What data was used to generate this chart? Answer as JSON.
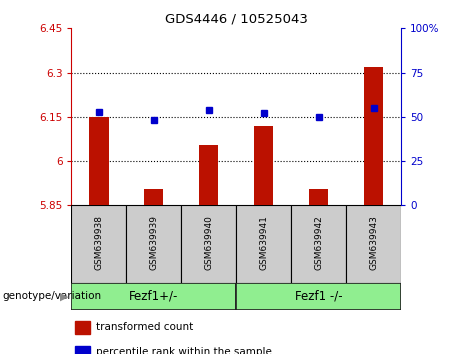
{
  "title": "GDS4446 / 10525043",
  "samples": [
    "GSM639938",
    "GSM639939",
    "GSM639940",
    "GSM639941",
    "GSM639942",
    "GSM639943"
  ],
  "bar_values": [
    6.148,
    5.905,
    6.055,
    6.118,
    5.905,
    6.32
  ],
  "percentile_values": [
    53,
    48,
    54,
    52,
    50,
    55
  ],
  "bar_bottom": 5.85,
  "ylim_left": [
    5.85,
    6.45
  ],
  "ylim_right": [
    0,
    100
  ],
  "yticks_left": [
    5.85,
    6.0,
    6.15,
    6.3,
    6.45
  ],
  "ytick_labels_left": [
    "5.85",
    "6",
    "6.15",
    "6.3",
    "6.45"
  ],
  "yticks_right": [
    0,
    25,
    50,
    75,
    100
  ],
  "ytick_labels_right": [
    "0",
    "25",
    "50",
    "75",
    "100%"
  ],
  "bar_color": "#bb1100",
  "dot_color": "#0000cc",
  "grid_color": "#000000",
  "bg_color": "#ffffff",
  "sample_box_color": "#cccccc",
  "group1_label": "Fezf1+/-",
  "group2_label": "Fezf1 -/-",
  "group_color": "#90EE90",
  "genotype_label": "genotype/variation",
  "legend_items": [
    {
      "color": "#bb1100",
      "label": "transformed count"
    },
    {
      "color": "#0000cc",
      "label": "percentile rank within the sample"
    }
  ]
}
